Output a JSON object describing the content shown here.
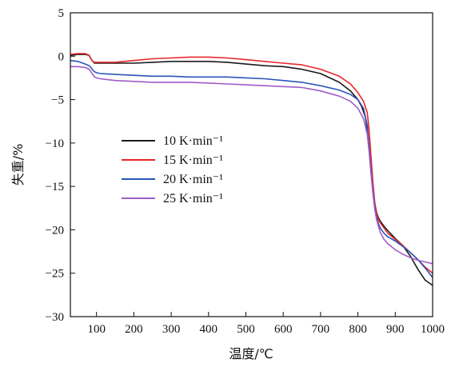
{
  "chart_data": {
    "type": "line",
    "title": "",
    "xlabel": "温度/℃",
    "ylabel": "失重/%",
    "xlim": [
      30,
      1000
    ],
    "ylim": [
      -30,
      5
    ],
    "xticks": [
      100,
      200,
      300,
      400,
      500,
      600,
      700,
      800,
      900,
      1000
    ],
    "yticks": [
      5,
      0,
      -5,
      -10,
      -15,
      -20,
      -25,
      -30
    ],
    "grid": false,
    "legend": "center-left",
    "series": [
      {
        "name": "10 K·min⁻¹",
        "color": "#1a1a1a",
        "x": [
          30,
          50,
          70,
          80,
          85,
          90,
          95,
          100,
          110,
          150,
          200,
          250,
          300,
          350,
          400,
          450,
          500,
          550,
          600,
          650,
          700,
          750,
          780,
          800,
          810,
          820,
          825,
          830,
          835,
          840,
          845,
          850,
          855,
          860,
          870,
          880,
          900,
          920,
          940,
          960,
          980,
          1000
        ],
        "y": [
          0.1,
          0.2,
          0.2,
          0.1,
          -0.3,
          -0.6,
          -0.8,
          -0.8,
          -0.8,
          -0.8,
          -0.8,
          -0.7,
          -0.6,
          -0.6,
          -0.6,
          -0.7,
          -0.9,
          -1.1,
          -1.2,
          -1.5,
          -2.0,
          -3.0,
          -4.0,
          -5.0,
          -5.8,
          -7.0,
          -8.5,
          -10.5,
          -13.0,
          -15.5,
          -17.0,
          -18.0,
          -18.6,
          -19.0,
          -19.6,
          -20.1,
          -21.0,
          -21.8,
          -23.0,
          -24.5,
          -25.8,
          -26.4
        ]
      },
      {
        "name": "15 K·min⁻¹",
        "color": "#e8262a",
        "x": [
          30,
          50,
          70,
          80,
          85,
          90,
          95,
          100,
          110,
          150,
          200,
          250,
          300,
          350,
          400,
          450,
          500,
          550,
          600,
          650,
          700,
          750,
          780,
          800,
          815,
          825,
          830,
          835,
          840,
          845,
          850,
          855,
          860,
          870,
          880,
          900,
          920,
          940,
          960,
          980,
          1000
        ],
        "y": [
          0.2,
          0.3,
          0.3,
          0.1,
          -0.3,
          -0.6,
          -0.7,
          -0.7,
          -0.7,
          -0.7,
          -0.5,
          -0.3,
          -0.2,
          -0.1,
          -0.1,
          -0.2,
          -0.4,
          -0.6,
          -0.8,
          -1.0,
          -1.5,
          -2.3,
          -3.2,
          -4.2,
          -5.2,
          -6.5,
          -8.5,
          -11.5,
          -14.5,
          -16.8,
          -18.0,
          -18.8,
          -19.2,
          -19.8,
          -20.4,
          -21.1,
          -21.8,
          -22.6,
          -23.4,
          -24.3,
          -25.0
        ]
      },
      {
        "name": "20 K·min⁻¹",
        "color": "#2a55b8",
        "x": [
          30,
          50,
          70,
          80,
          85,
          90,
          95,
          100,
          110,
          150,
          200,
          250,
          300,
          350,
          400,
          450,
          500,
          550,
          600,
          650,
          700,
          750,
          780,
          800,
          815,
          825,
          830,
          835,
          840,
          845,
          850,
          855,
          860,
          870,
          880,
          900,
          920,
          940,
          960,
          980,
          1000
        ],
        "y": [
          -0.5,
          -0.6,
          -0.9,
          -1.1,
          -1.3,
          -1.6,
          -1.8,
          -1.9,
          -2.0,
          -2.1,
          -2.2,
          -2.3,
          -2.3,
          -2.4,
          -2.4,
          -2.4,
          -2.5,
          -2.6,
          -2.8,
          -3.0,
          -3.4,
          -3.9,
          -4.4,
          -5.0,
          -6.0,
          -8.0,
          -10.5,
          -13.0,
          -15.5,
          -17.3,
          -18.5,
          -19.3,
          -19.8,
          -20.4,
          -20.8,
          -21.3,
          -21.9,
          -22.6,
          -23.4,
          -24.4,
          -25.5
        ]
      },
      {
        "name": "25 K·min⁻¹",
        "color": "#a05cc8",
        "x": [
          30,
          50,
          70,
          80,
          85,
          90,
          95,
          100,
          110,
          150,
          200,
          250,
          300,
          350,
          400,
          450,
          500,
          550,
          600,
          650,
          700,
          750,
          780,
          800,
          815,
          825,
          830,
          835,
          840,
          845,
          850,
          855,
          860,
          870,
          880,
          900,
          920,
          940,
          960,
          980,
          1000
        ],
        "y": [
          -1.2,
          -1.2,
          -1.3,
          -1.5,
          -1.8,
          -2.1,
          -2.4,
          -2.5,
          -2.6,
          -2.8,
          -2.9,
          -3.0,
          -3.0,
          -3.0,
          -3.1,
          -3.2,
          -3.3,
          -3.4,
          -3.5,
          -3.6,
          -4.0,
          -4.6,
          -5.2,
          -6.0,
          -7.2,
          -9.0,
          -11.0,
          -13.5,
          -15.8,
          -17.6,
          -18.8,
          -19.6,
          -20.3,
          -21.1,
          -21.6,
          -22.3,
          -22.8,
          -23.2,
          -23.5,
          -23.7,
          -23.9
        ]
      }
    ]
  }
}
